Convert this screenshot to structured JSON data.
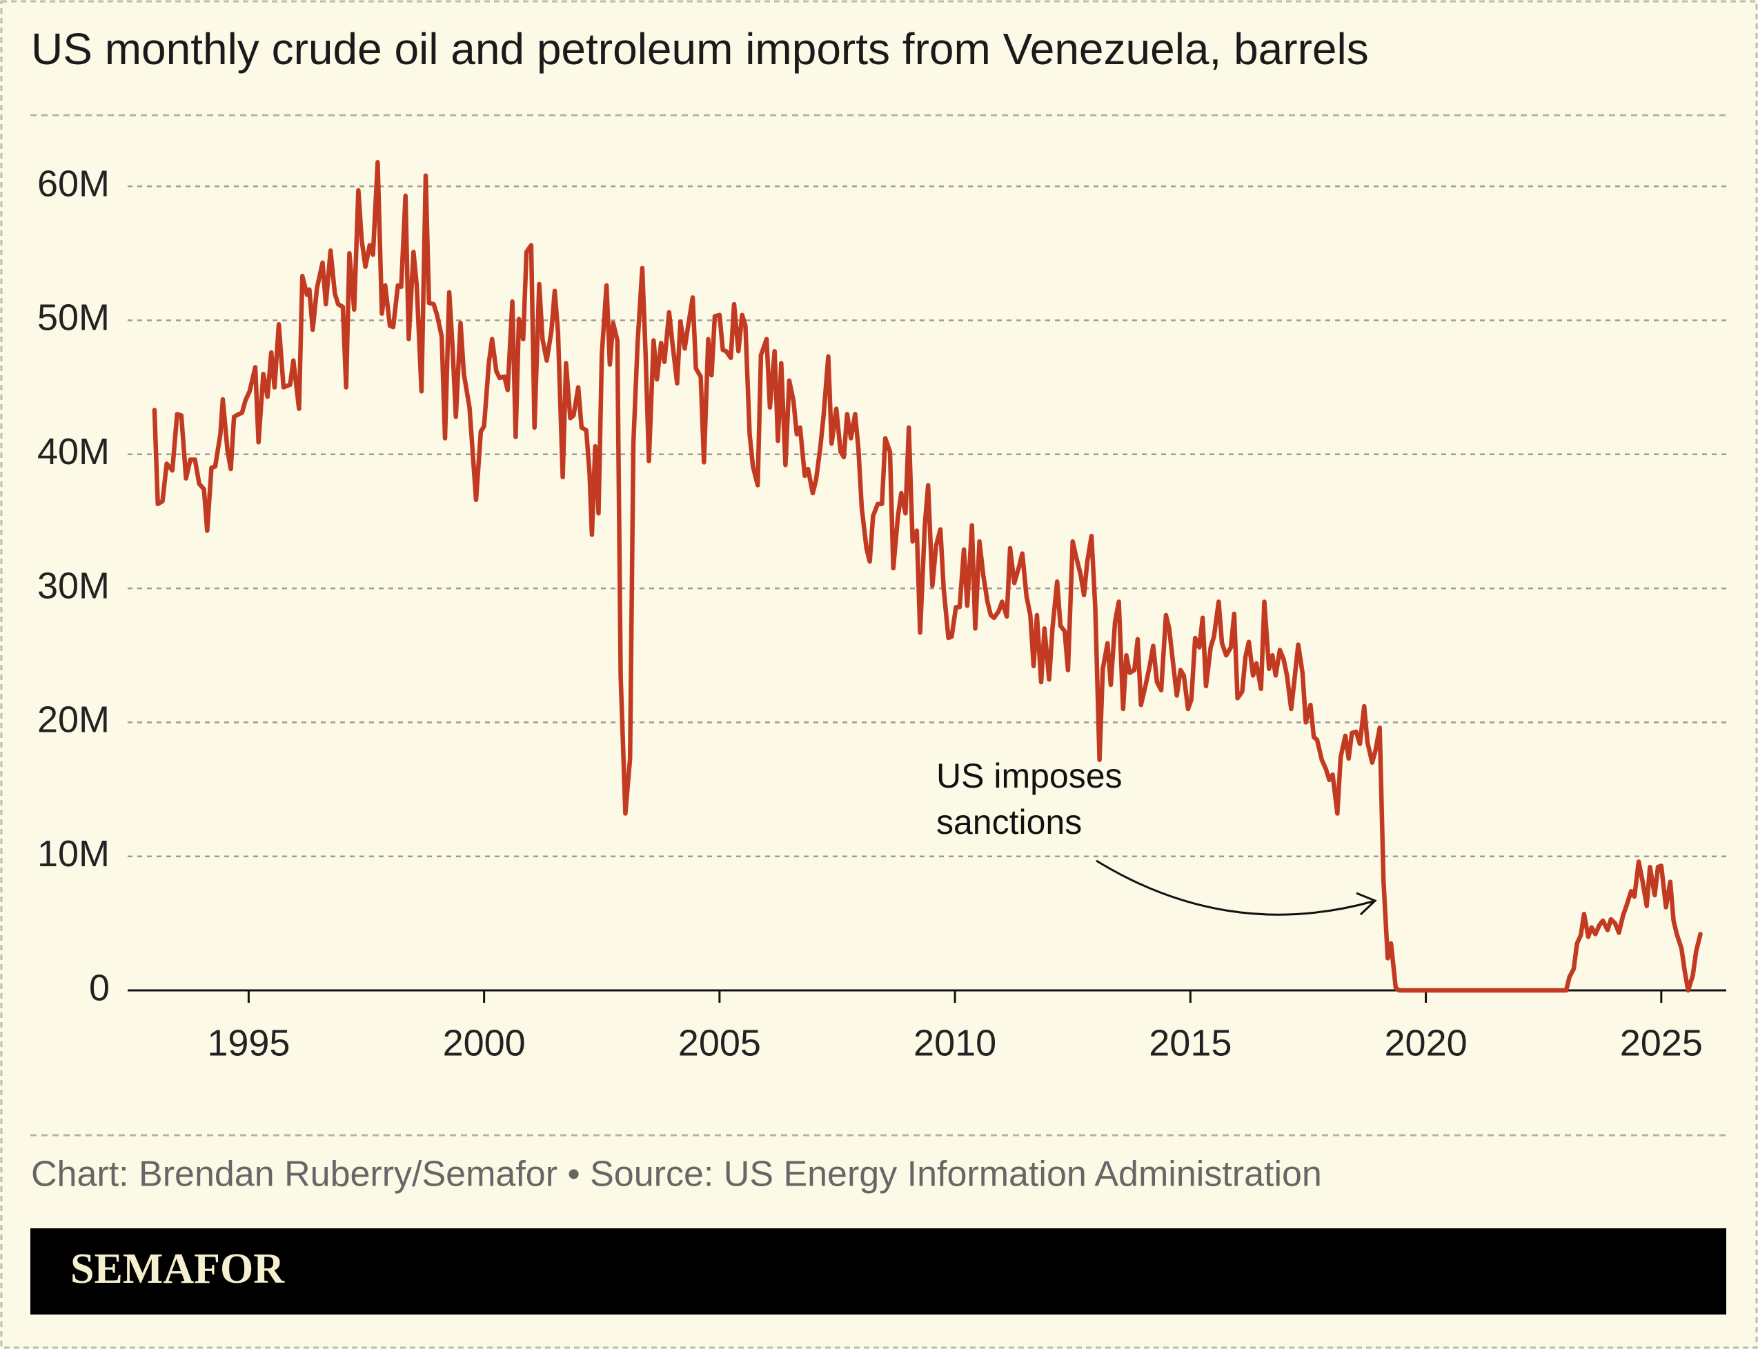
{
  "chart_data": {
    "type": "line",
    "title": "US monthly crude oil and petroleum imports from Venezuela, barrels",
    "annotation": [
      "US imposes",
      "sanctions"
    ],
    "source": "Chart: Brendan Ruberry/Semafor • Source: US Energy Information Administration",
    "brand": "SEMAFOR",
    "color": "#c23a22",
    "grid": true,
    "xlim": [
      1992.43,
      2026.38
    ],
    "ylim": [
      0,
      65000000
    ],
    "xticks": [
      1995,
      2000,
      2005,
      2010,
      2015,
      2020,
      2025
    ],
    "yticks": [
      0,
      {
        "value": 10000000,
        "label": "10M"
      },
      {
        "value": 20000000,
        "label": "20M"
      },
      {
        "value": 30000000,
        "label": "30M"
      },
      {
        "value": 40000000,
        "label": "40M"
      },
      {
        "value": 50000000,
        "label": "50M"
      },
      {
        "value": 60000000,
        "label": "60M"
      }
    ],
    "x": [
      1993.0,
      1993.07,
      1993.17,
      1993.26,
      1993.38,
      1993.48,
      1993.57,
      1993.67,
      1993.76,
      1993.86,
      1993.95,
      1994.05,
      1994.12,
      1994.21,
      1994.29,
      1994.4,
      1994.45,
      1994.55,
      1994.62,
      1994.69,
      1994.79,
      1994.86,
      1994.93,
      1995.02,
      1995.14,
      1995.21,
      1995.31,
      1995.4,
      1995.48,
      1995.55,
      1995.64,
      1995.74,
      1995.88,
      1995.95,
      1996.07,
      1996.14,
      1996.24,
      1996.29,
      1996.36,
      1996.45,
      1996.57,
      1996.64,
      1996.74,
      1996.83,
      1996.9,
      1997.0,
      1997.07,
      1997.14,
      1997.24,
      1997.33,
      1997.4,
      1997.48,
      1997.57,
      1997.64,
      1997.74,
      1997.83,
      1997.9,
      1998.0,
      1998.07,
      1998.17,
      1998.24,
      1998.33,
      1998.4,
      1998.5,
      1998.57,
      1998.67,
      1998.76,
      1998.83,
      1998.93,
      1999.0,
      1999.1,
      1999.17,
      1999.26,
      1999.33,
      1999.4,
      1999.5,
      1999.57,
      1999.69,
      1999.76,
      1999.83,
      1999.93,
      2000.0,
      2000.1,
      2000.17,
      2000.26,
      2000.33,
      2000.43,
      2000.5,
      2000.6,
      2000.67,
      2000.74,
      2000.83,
      2000.9,
      2001.0,
      2001.07,
      2001.17,
      2001.24,
      2001.33,
      2001.43,
      2001.5,
      2001.57,
      2001.67,
      2001.74,
      2001.83,
      2001.9,
      2002.0,
      2002.07,
      2002.17,
      2002.24,
      2002.29,
      2002.36,
      2002.43,
      2002.5,
      2002.6,
      2002.67,
      2002.74,
      2002.83,
      2002.9,
      2003.0,
      2003.1,
      2003.17,
      2003.26,
      2003.36,
      2003.43,
      2003.5,
      2003.6,
      2003.67,
      2003.76,
      2003.83,
      2003.93,
      2004.0,
      2004.1,
      2004.17,
      2004.26,
      2004.33,
      2004.43,
      2004.5,
      2004.6,
      2004.67,
      2004.76,
      2004.83,
      2004.9,
      2005.0,
      2005.07,
      2005.14,
      2005.24,
      2005.31,
      2005.4,
      2005.48,
      2005.55,
      2005.64,
      2005.71,
      2005.81,
      2005.88,
      2006.0,
      2006.07,
      2006.17,
      2006.24,
      2006.31,
      2006.4,
      2006.48,
      2006.57,
      2006.64,
      2006.71,
      2006.81,
      2006.88,
      2006.98,
      2007.05,
      2007.14,
      2007.21,
      2007.31,
      2007.38,
      2007.48,
      2007.57,
      2007.64,
      2007.71,
      2007.79,
      2007.88,
      2007.95,
      2008.02,
      2008.12,
      2008.19,
      2008.26,
      2008.36,
      2008.45,
      2008.52,
      2008.62,
      2008.69,
      2008.79,
      2008.86,
      2008.95,
      2009.02,
      2009.1,
      2009.19,
      2009.26,
      2009.36,
      2009.43,
      2009.52,
      2009.6,
      2009.69,
      2009.76,
      2009.86,
      2009.93,
      2010.02,
      2010.1,
      2010.19,
      2010.26,
      2010.36,
      2010.43,
      2010.52,
      2010.6,
      2010.69,
      2010.76,
      2010.83,
      2010.93,
      2011.0,
      2011.1,
      2011.17,
      2011.26,
      2011.36,
      2011.43,
      2011.52,
      2011.6,
      2011.67,
      2011.74,
      2011.83,
      2011.9,
      2012.0,
      2012.07,
      2012.17,
      2012.24,
      2012.33,
      2012.4,
      2012.5,
      2012.57,
      2012.67,
      2012.74,
      2012.81,
      2012.9,
      2012.98,
      2013.07,
      2013.14,
      2013.24,
      2013.31,
      2013.4,
      2013.48,
      2013.57,
      2013.64,
      2013.71,
      2013.81,
      2013.88,
      2013.95,
      2014.05,
      2014.14,
      2014.21,
      2014.29,
      2014.38,
      2014.48,
      2014.55,
      2014.62,
      2014.71,
      2014.79,
      2014.86,
      2014.95,
      2015.02,
      2015.1,
      2015.19,
      2015.26,
      2015.33,
      2015.43,
      2015.5,
      2015.6,
      2015.67,
      2015.76,
      2015.86,
      2015.93,
      2016.0,
      2016.1,
      2016.17,
      2016.24,
      2016.33,
      2016.4,
      2016.5,
      2016.57,
      2016.67,
      2016.74,
      2016.81,
      2016.9,
      2016.98,
      2017.05,
      2017.14,
      2017.21,
      2017.29,
      2017.38,
      2017.45,
      2017.55,
      2017.62,
      2017.69,
      2017.79,
      2017.88,
      2017.95,
      2018.02,
      2018.12,
      2018.19,
      2018.29,
      2018.36,
      2018.43,
      2018.52,
      2018.6,
      2018.69,
      2018.76,
      2018.86,
      2018.93,
      2019.02,
      2019.1,
      2019.19,
      2019.26,
      2019.36,
      2019.43,
      2020.0,
      2021.0,
      2022.0,
      2022.98,
      2023.05,
      2023.14,
      2023.21,
      2023.29,
      2023.36,
      2023.45,
      2023.52,
      2023.6,
      2023.69,
      2023.76,
      2023.86,
      2023.93,
      2024.02,
      2024.1,
      2024.19,
      2024.26,
      2024.36,
      2024.43,
      2024.52,
      2024.6,
      2024.69,
      2024.76,
      2024.86,
      2024.93,
      2025.0,
      2025.1,
      2025.19,
      2025.26,
      2025.33,
      2025.43,
      2025.5,
      2025.57,
      2025.67,
      2025.74,
      2025.83
    ],
    "values": [
      43300000,
      36300000,
      36500000,
      39300000,
      38800000,
      43000000,
      42900000,
      38200000,
      39600000,
      39600000,
      37800000,
      37400000,
      34300000,
      39000000,
      39100000,
      41500000,
      44100000,
      40300000,
      38900000,
      42800000,
      43000000,
      43100000,
      44000000,
      44700000,
      46500000,
      40900000,
      46000000,
      44300000,
      47600000,
      45000000,
      49700000,
      45000000,
      45200000,
      47000000,
      43400000,
      53300000,
      51900000,
      52300000,
      49300000,
      52400000,
      54300000,
      51200000,
      55200000,
      52000000,
      51200000,
      51000000,
      45000000,
      55000000,
      50800000,
      59700000,
      56000000,
      54000000,
      55600000,
      54900000,
      61800000,
      50500000,
      52600000,
      49600000,
      49500000,
      52600000,
      52500000,
      59300000,
      48600000,
      55100000,
      52600000,
      44700000,
      60800000,
      51300000,
      51200000,
      50400000,
      48800000,
      41200000,
      52100000,
      48000000,
      42800000,
      49800000,
      46000000,
      43500000,
      40000000,
      36600000,
      41700000,
      42100000,
      46800000,
      48600000,
      46200000,
      45700000,
      45800000,
      44800000,
      51400000,
      41300000,
      50100000,
      48600000,
      55100000,
      55600000,
      42000000,
      52700000,
      48600000,
      47000000,
      49200000,
      52200000,
      49100000,
      38300000,
      46800000,
      42700000,
      42900000,
      45000000,
      42000000,
      41800000,
      38600000,
      34000000,
      40600000,
      35600000,
      47500000,
      52600000,
      46700000,
      49800000,
      48500000,
      23400000,
      13200000,
      17300000,
      40800000,
      48300000,
      53900000,
      47500000,
      39500000,
      48500000,
      45600000,
      48300000,
      46900000,
      50600000,
      48300000,
      45300000,
      49900000,
      47900000,
      49500000,
      51700000,
      46400000,
      45800000,
      39400000,
      48600000,
      45900000,
      50300000,
      50400000,
      47800000,
      47700000,
      47200000,
      51200000,
      47700000,
      50400000,
      49600000,
      41500000,
      39100000,
      37700000,
      47400000,
      48600000,
      43500000,
      47700000,
      41000000,
      46800000,
      39200000,
      45500000,
      44000000,
      41500000,
      42000000,
      38400000,
      38900000,
      37100000,
      38100000,
      40500000,
      42900000,
      47300000,
      40800000,
      43400000,
      40200000,
      39800000,
      43000000,
      41200000,
      43000000,
      40400000,
      36000000,
      33000000,
      32000000,
      35400000,
      36300000,
      36300000,
      41200000,
      40200000,
      31500000,
      35400000,
      37100000,
      35600000,
      42000000,
      33500000,
      34300000,
      26700000,
      34700000,
      37700000,
      30200000,
      33200000,
      34400000,
      30000000,
      26300000,
      26400000,
      28600000,
      28600000,
      32900000,
      28700000,
      34700000,
      27000000,
      33500000,
      31000000,
      29000000,
      28000000,
      27800000,
      28300000,
      29000000,
      27900000,
      33000000,
      30400000,
      31600000,
      32600000,
      29400000,
      28000000,
      24200000,
      28000000,
      23000000,
      27000000,
      23200000,
      27000000,
      30500000,
      27200000,
      26800000,
      23900000,
      33500000,
      32400000,
      31000000,
      29500000,
      32000000,
      33900000,
      28500000,
      17200000,
      24000000,
      25900000,
      22800000,
      27500000,
      29000000,
      21000000,
      25000000,
      23700000,
      23900000,
      26200000,
      21300000,
      22800000,
      24300000,
      25700000,
      23000000,
      22400000,
      28000000,
      27000000,
      24800000,
      22000000,
      23900000,
      23500000,
      21000000,
      21700000,
      26300000,
      25600000,
      27800000,
      22700000,
      25600000,
      26400000,
      29000000,
      25900000,
      25000000,
      25600000,
      28100000,
      21800000,
      22300000,
      24900000,
      26000000,
      23500000,
      24400000,
      22500000,
      29000000,
      24000000,
      25000000,
      23500000,
      25400000,
      24700000,
      23500000,
      21000000,
      23200000,
      25800000,
      23700000,
      20000000,
      21300000,
      18900000,
      18700000,
      17200000,
      16500000,
      15700000,
      16100000,
      13200000,
      17400000,
      19000000,
      17300000,
      19200000,
      19300000,
      18400000,
      21200000,
      18500000,
      17000000,
      17900000,
      19600000,
      8200000,
      2400000,
      3500000,
      200000,
      0,
      0,
      0,
      0,
      0,
      1000000,
      1600000,
      3500000,
      4100000,
      5700000,
      4000000,
      4700000,
      4200000,
      4900000,
      5200000,
      4500000,
      5300000,
      5000000,
      4300000,
      5600000,
      6300000,
      7400000,
      7000000,
      9600000,
      8200000,
      6300000,
      9200000,
      7100000,
      9200000,
      9300000,
      6200000,
      8100000,
      5200000,
      4200000,
      3100000,
      1400000,
      0,
      1100000,
      2900000,
      4200000
    ]
  }
}
